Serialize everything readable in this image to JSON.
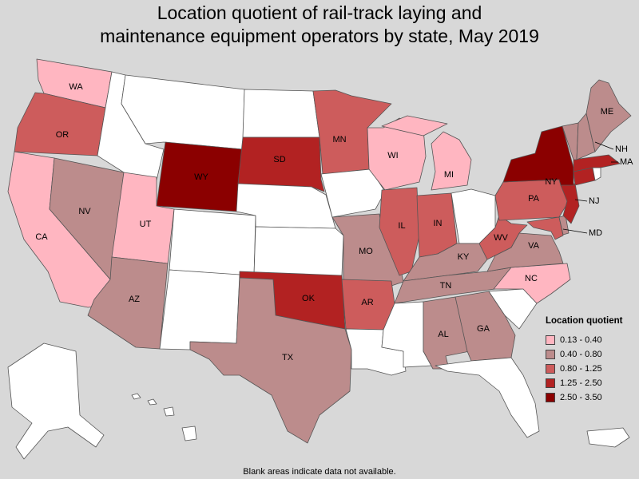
{
  "title": {
    "line1": "Location quotient of rail-track laying and",
    "line2": "maintenance equipment operators by state, May 2019"
  },
  "legend": {
    "title": "Location quotient",
    "ranges": [
      {
        "label": "0.13 - 0.40",
        "color": "#ffb6c1"
      },
      {
        "label": "0.40 - 0.80",
        "color": "#bc8c8c"
      },
      {
        "label": "0.80 - 1.25",
        "color": "#cd5c5c"
      },
      {
        "label": "1.25 - 2.50",
        "color": "#b22222"
      },
      {
        "label": "2.50 - 3.50",
        "color": "#8b0000"
      }
    ]
  },
  "no_data_color": "#ffffff",
  "footnote": "Blank areas indicate data not available.",
  "states": {
    "WA": {
      "label": "WA",
      "class": "0.13 - 0.40"
    },
    "OR": {
      "label": "OR",
      "class": "0.80 - 1.25"
    },
    "CA": {
      "label": "CA",
      "class": "0.13 - 0.40"
    },
    "NV": {
      "label": "NV",
      "class": "0.40 - 0.80"
    },
    "UT": {
      "label": "UT",
      "class": "0.13 - 0.40"
    },
    "AZ": {
      "label": "AZ",
      "class": "0.40 - 0.80"
    },
    "WY": {
      "label": "WY",
      "class": "2.50 - 3.50"
    },
    "SD": {
      "label": "SD",
      "class": "1.25 - 2.50"
    },
    "MN": {
      "label": "MN",
      "class": "0.80 - 1.25"
    },
    "WI": {
      "label": "WI",
      "class": "0.13 - 0.40"
    },
    "MI": {
      "label": "MI",
      "class": "0.13 - 0.40"
    },
    "IL": {
      "label": "IL",
      "class": "0.80 - 1.25"
    },
    "IN": {
      "label": "IN",
      "class": "0.80 - 1.25"
    },
    "MO": {
      "label": "MO",
      "class": "0.40 - 0.80"
    },
    "KY": {
      "label": "KY",
      "class": "0.40 - 0.80"
    },
    "TN": {
      "label": "TN",
      "class": "0.40 - 0.80"
    },
    "OK": {
      "label": "OK",
      "class": "1.25 - 2.50"
    },
    "AR": {
      "label": "AR",
      "class": "0.80 - 1.25"
    },
    "TX": {
      "label": "TX",
      "class": "0.40 - 0.80"
    },
    "AL": {
      "label": "AL",
      "class": "0.40 - 0.80"
    },
    "GA": {
      "label": "GA",
      "class": "0.40 - 0.80"
    },
    "NC": {
      "label": "NC",
      "class": "0.13 - 0.40"
    },
    "VA": {
      "label": "VA",
      "class": "0.40 - 0.80"
    },
    "WV": {
      "label": "WV",
      "class": "0.80 - 1.25"
    },
    "PA": {
      "label": "PA",
      "class": "0.80 - 1.25"
    },
    "NY": {
      "label": "NY",
      "class": "2.50 - 3.50"
    },
    "NJ": {
      "label": "NJ",
      "class": "1.25 - 2.50"
    },
    "MD": {
      "label": "MD",
      "class": "0.80 - 1.25"
    },
    "ME": {
      "label": "ME",
      "class": "0.40 - 0.80"
    },
    "NH": {
      "label": "NH",
      "class": "0.40 - 0.80"
    },
    "VT": {
      "label": "",
      "class": "0.40 - 0.80"
    },
    "MA": {
      "label": "MA",
      "class": "1.25 - 2.50"
    },
    "CT": {
      "label": "",
      "class": "1.25 - 2.50"
    },
    "DE": {
      "label": "",
      "class": "0.40 - 0.80"
    },
    "ID": {
      "label": "",
      "class": null
    },
    "MT": {
      "label": "",
      "class": null
    },
    "ND": {
      "label": "",
      "class": null
    },
    "NE": {
      "label": "",
      "class": null
    },
    "IA": {
      "label": "",
      "class": null
    },
    "CO": {
      "label": "",
      "class": null
    },
    "KS": {
      "label": "",
      "class": null
    },
    "NM": {
      "label": "",
      "class": null
    },
    "OH": {
      "label": "",
      "class": null
    },
    "LA": {
      "label": "",
      "class": null
    },
    "MS": {
      "label": "",
      "class": null
    },
    "FL": {
      "label": "",
      "class": null
    },
    "SC": {
      "label": "",
      "class": null
    },
    "RI": {
      "label": "",
      "class": null
    },
    "AK": {
      "label": "",
      "class": null
    },
    "HI": {
      "label": "",
      "class": null
    },
    "PR": {
      "label": "",
      "class": null
    }
  }
}
